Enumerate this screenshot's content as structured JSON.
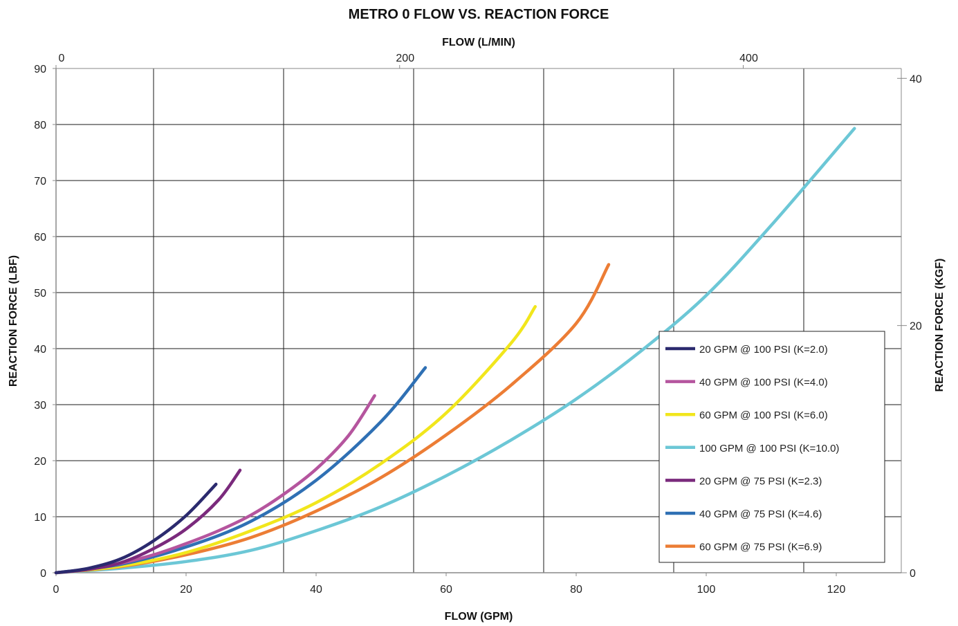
{
  "chart_data": {
    "type": "line",
    "title": "METRO 0 FLOW VS. REACTION FORCE",
    "xlabel": "FLOW (GPM)",
    "ylabel": "REACTION FORCE (LBF)",
    "x2label": "FLOW (L/MIN)",
    "y2label": "REACTION FORCE (KGF)",
    "xlim": [
      0,
      130
    ],
    "ylim": [
      0,
      90
    ],
    "x2lim": [
      0,
      492
    ],
    "y2lim": [
      0,
      40.8
    ],
    "x_ticks": [
      0,
      20,
      40,
      60,
      80,
      100,
      120
    ],
    "x_tick_labels": [
      "0",
      "20",
      "40",
      "60",
      "80",
      "100",
      "120"
    ],
    "y_ticks": [
      0,
      10,
      20,
      30,
      40,
      50,
      60,
      70,
      80,
      90
    ],
    "y_tick_labels": [
      "0",
      "10",
      "20",
      "30",
      "40",
      "50",
      "60",
      "70",
      "80",
      "90"
    ],
    "x2_ticks": [
      0,
      200,
      400
    ],
    "x2_tick_labels": [
      "0",
      "200",
      "400"
    ],
    "y2_ticks": [
      0,
      20,
      40
    ],
    "y2_tick_labels": [
      "0",
      "20",
      "40"
    ],
    "grid": true,
    "x_gridlines": [
      15,
      35,
      55,
      75,
      95,
      115
    ],
    "y_gridlines": [
      10,
      20,
      30,
      40,
      50,
      60,
      70,
      80,
      90
    ],
    "legend_position": "right",
    "series": [
      {
        "name": "20 GPM @ 100 PSI (K=2.0)",
        "color": "#2b2a6e",
        "x": [
          0,
          5,
          10,
          15,
          20,
          24.6
        ],
        "y": [
          0,
          0.8,
          2.5,
          5.7,
          10.2,
          15.8
        ]
      },
      {
        "name": "40 GPM @ 100 PSI (K=4.0)",
        "color": "#b5559e",
        "x": [
          0,
          5,
          10,
          15,
          20,
          25,
          30,
          35,
          40,
          45,
          49
        ],
        "y": [
          0,
          0.6,
          1.7,
          3.2,
          5.2,
          7.5,
          10.3,
          14.0,
          18.5,
          24.5,
          31.6
        ]
      },
      {
        "name": "60 GPM @ 100 PSI (K=6.0)",
        "color": "#f1e61c",
        "x": [
          0,
          10,
          20,
          30,
          40,
          50,
          60,
          70,
          73.7
        ],
        "y": [
          0,
          1.2,
          3.6,
          7.5,
          12.5,
          19.5,
          28.5,
          41.0,
          47.5
        ]
      },
      {
        "name": "100 GPM @ 100 PSI (K=10.0)",
        "color": "#6cc7d6",
        "x": [
          0,
          10,
          20,
          30,
          40,
          50,
          60,
          70,
          80,
          90,
          100,
          110,
          122.8
        ],
        "y": [
          0,
          0.8,
          2.0,
          4.0,
          7.5,
          11.8,
          17.3,
          23.7,
          31.0,
          39.6,
          49.5,
          62.0,
          79.3
        ]
      },
      {
        "name": "20 GPM @ 75 PSI (K=2.3)",
        "color": "#7a2a7c",
        "x": [
          0,
          5,
          10,
          15,
          20,
          25,
          28.3
        ],
        "y": [
          0,
          0.6,
          1.8,
          4.3,
          7.8,
          13.0,
          18.3
        ]
      },
      {
        "name": "40 GPM @ 75 PSI (K=4.6)",
        "color": "#2f70b4",
        "x": [
          0,
          10,
          20,
          30,
          40,
          50,
          56.8
        ],
        "y": [
          0,
          1.5,
          4.6,
          9.2,
          16.5,
          27.0,
          36.6
        ]
      },
      {
        "name": "60 GPM @ 75 PSI (K=6.9)",
        "color": "#ec7d35",
        "x": [
          0,
          10,
          20,
          30,
          40,
          50,
          60,
          70,
          80,
          85
        ],
        "y": [
          0,
          1.1,
          3.2,
          6.3,
          11.0,
          17.0,
          24.6,
          33.5,
          44.5,
          55.0
        ]
      }
    ]
  }
}
